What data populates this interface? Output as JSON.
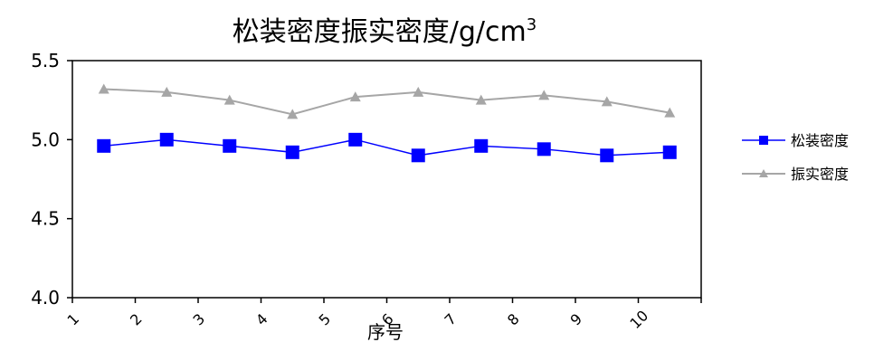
{
  "chart_data": {
    "type": "line",
    "title": "松装密度振实密度/g/cm",
    "title_sup": "3",
    "xlabel": "序号",
    "ylabel": "",
    "categories": [
      "1",
      "2",
      "3",
      "4",
      "5",
      "6",
      "7",
      "8",
      "9",
      "10"
    ],
    "ylim": [
      4.0,
      5.5
    ],
    "yticks": [
      "4.0",
      "4.5",
      "5.0",
      "5.5"
    ],
    "grid": false,
    "legend_position": "right",
    "series": [
      {
        "name": "松装密度",
        "color": "#0000FF",
        "marker": "square",
        "values": [
          4.96,
          5.0,
          4.96,
          4.92,
          5.0,
          4.9,
          4.96,
          4.94,
          4.9,
          4.92
        ]
      },
      {
        "name": "振实密度",
        "color": "#A6A6A6",
        "marker": "triangle",
        "values": [
          5.32,
          5.3,
          5.25,
          5.16,
          5.27,
          5.3,
          5.25,
          5.28,
          5.24,
          5.17
        ]
      }
    ]
  }
}
